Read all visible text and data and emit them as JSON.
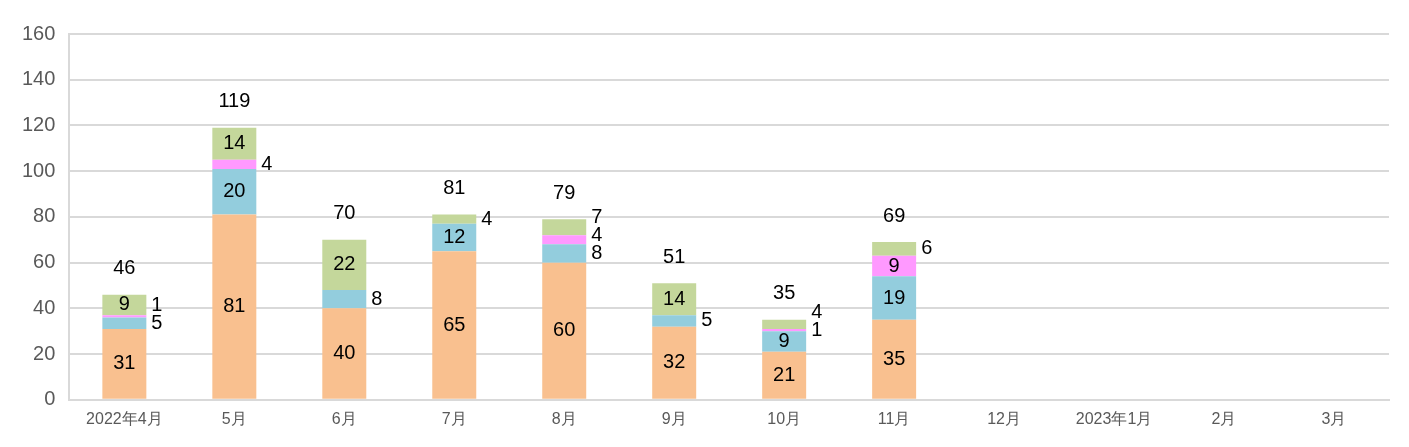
{
  "chart_data": {
    "type": "bar",
    "stacked": true,
    "data_labels": true,
    "grid": "y",
    "legend": false,
    "categories": [
      "2022年4月",
      "5月",
      "6月",
      "7月",
      "8月",
      "9月",
      "10月",
      "11月",
      "12月",
      "2023年1月",
      "2月",
      "3月"
    ],
    "series": [
      {
        "color": "#f9c08f",
        "values": [
          31,
          81,
          40,
          65,
          60,
          32,
          21,
          35,
          null,
          null,
          null,
          null
        ]
      },
      {
        "color": "#93cddd",
        "values": [
          5,
          20,
          8,
          12,
          8,
          5,
          9,
          19,
          null,
          null,
          null,
          null
        ]
      },
      {
        "color": "#ff99ff",
        "values": [
          1,
          4,
          null,
          null,
          4,
          null,
          1,
          9,
          null,
          null,
          null,
          null
        ]
      },
      {
        "color": "#c4d79b",
        "values": [
          9,
          14,
          22,
          4,
          7,
          14,
          4,
          6,
          null,
          null,
          null,
          null
        ]
      }
    ],
    "totals": [
      "46",
      "119",
      "70",
      "81",
      "79",
      "51",
      "35",
      "69",
      null,
      null,
      null,
      null
    ],
    "ylim": [
      0,
      160
    ],
    "yticks": [
      0,
      20,
      40,
      60,
      80,
      100,
      120,
      140,
      160
    ]
  }
}
